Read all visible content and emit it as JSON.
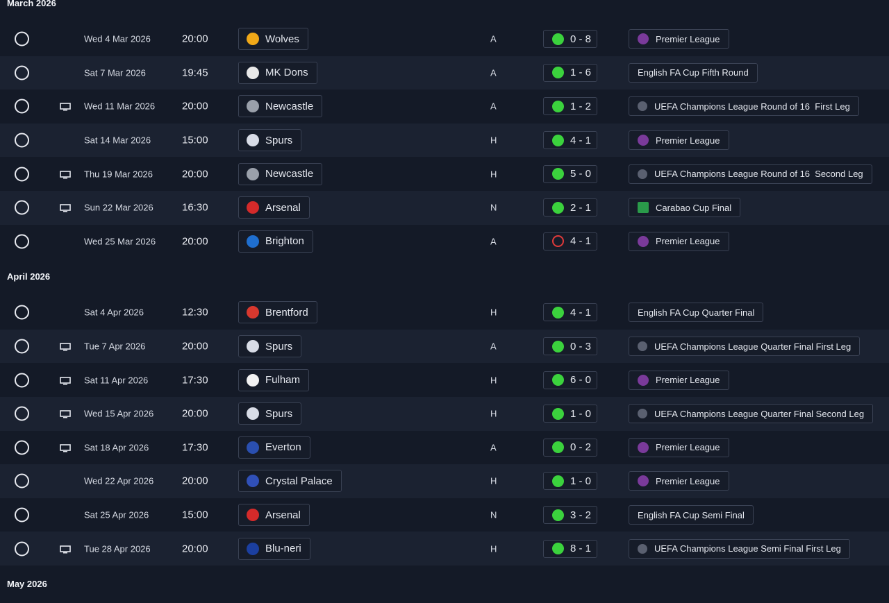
{
  "sections": [
    {
      "title": "March 2026",
      "rows": [
        {
          "date": "Wed 4 Mar 2026",
          "time": "20:00",
          "opponent": "Wolves",
          "badge": "#f0a818",
          "venue": "A",
          "result": "0 - 8",
          "result_icon": "filled",
          "competition": "Premier League",
          "comp_icon": "pl",
          "tv": false
        },
        {
          "date": "Sat 7 Mar 2026",
          "time": "19:45",
          "opponent": "MK Dons",
          "badge": "#e8e8e8",
          "venue": "A",
          "result": "1 - 6",
          "result_icon": "filled",
          "competition": "English FA Cup Fifth Round",
          "tv": false
        },
        {
          "date": "Wed 11 Mar 2026",
          "time": "20:00",
          "opponent": "Newcastle",
          "badge": "#9aa0aa",
          "venue": "A",
          "result": "1 - 2",
          "result_icon": "filled",
          "competition": "UEFA Champions League Round of 16  First Leg",
          "comp_icon": "ucl",
          "tv": true
        },
        {
          "date": "Sat 14 Mar 2026",
          "time": "15:00",
          "opponent": "Spurs",
          "badge": "#d8dce6",
          "venue": "H",
          "result": "4 - 1",
          "result_icon": "filled",
          "competition": "Premier League",
          "comp_icon": "pl",
          "tv": false
        },
        {
          "date": "Thu 19 Mar 2026",
          "time": "20:00",
          "opponent": "Newcastle",
          "badge": "#9aa0aa",
          "venue": "H",
          "result": "5 - 0",
          "result_icon": "filled",
          "competition": "UEFA Champions League Round of 16  Second Leg",
          "comp_icon": "ucl",
          "tv": true
        },
        {
          "date": "Sun 22 Mar 2026",
          "time": "16:30",
          "opponent": "Arsenal",
          "badge": "#d42a2a",
          "venue": "N",
          "result": "2 - 1",
          "result_icon": "filled",
          "competition": "Carabao Cup Final",
          "comp_icon": "carabao",
          "tv": true
        },
        {
          "date": "Wed 25 Mar 2026",
          "time": "20:00",
          "opponent": "Brighton",
          "badge": "#1f6fd0",
          "venue": "A",
          "result": "4 - 1",
          "result_icon": "hollow",
          "competition": "Premier League",
          "comp_icon": "pl",
          "tv": false
        }
      ]
    },
    {
      "title": "April 2026",
      "rows": [
        {
          "date": "Sat 4 Apr 2026",
          "time": "12:30",
          "opponent": "Brentford",
          "badge": "#d8382e",
          "venue": "H",
          "result": "4 - 1",
          "result_icon": "filled",
          "competition": "English FA Cup Quarter Final",
          "tv": false
        },
        {
          "date": "Tue 7 Apr 2026",
          "time": "20:00",
          "opponent": "Spurs",
          "badge": "#d8dce6",
          "venue": "A",
          "result": "0 - 3",
          "result_icon": "filled",
          "competition": "UEFA Champions League Quarter Final First Leg",
          "comp_icon": "ucl",
          "tv": true
        },
        {
          "date": "Sat 11 Apr 2026",
          "time": "17:30",
          "opponent": "Fulham",
          "badge": "#f2f2f2",
          "venue": "H",
          "result": "6 - 0",
          "result_icon": "filled",
          "competition": "Premier League",
          "comp_icon": "pl",
          "tv": true
        },
        {
          "date": "Wed 15 Apr 2026",
          "time": "20:00",
          "opponent": "Spurs",
          "badge": "#d8dce6",
          "venue": "H",
          "result": "1 - 0",
          "result_icon": "filled",
          "competition": "UEFA Champions League Quarter Final Second Leg",
          "comp_icon": "ucl",
          "tv": true
        },
        {
          "date": "Sat 18 Apr 2026",
          "time": "17:30",
          "opponent": "Everton",
          "badge": "#2a4fb0",
          "venue": "A",
          "result": "0 - 2",
          "result_icon": "filled",
          "competition": "Premier League",
          "comp_icon": "pl",
          "tv": true
        },
        {
          "date": "Wed 22 Apr 2026",
          "time": "20:00",
          "opponent": "Crystal Palace",
          "badge": "#3050b8",
          "venue": "H",
          "result": "1 - 0",
          "result_icon": "filled",
          "competition": "Premier League",
          "comp_icon": "pl",
          "tv": false
        },
        {
          "date": "Sat 25 Apr 2026",
          "time": "15:00",
          "opponent": "Arsenal",
          "badge": "#d42a2a",
          "venue": "N",
          "result": "3 - 2",
          "result_icon": "filled",
          "competition": "English FA Cup Semi Final",
          "tv": false
        },
        {
          "date": "Tue 28 Apr 2026",
          "time": "20:00",
          "opponent": "Blu-neri",
          "badge": "#1b3fa0",
          "venue": "H",
          "result": "8 - 1",
          "result_icon": "filled",
          "competition": "UEFA Champions League Semi Final First Leg",
          "comp_icon": "ucl",
          "tv": true
        }
      ]
    },
    {
      "title": "May 2026",
      "rows": []
    }
  ]
}
